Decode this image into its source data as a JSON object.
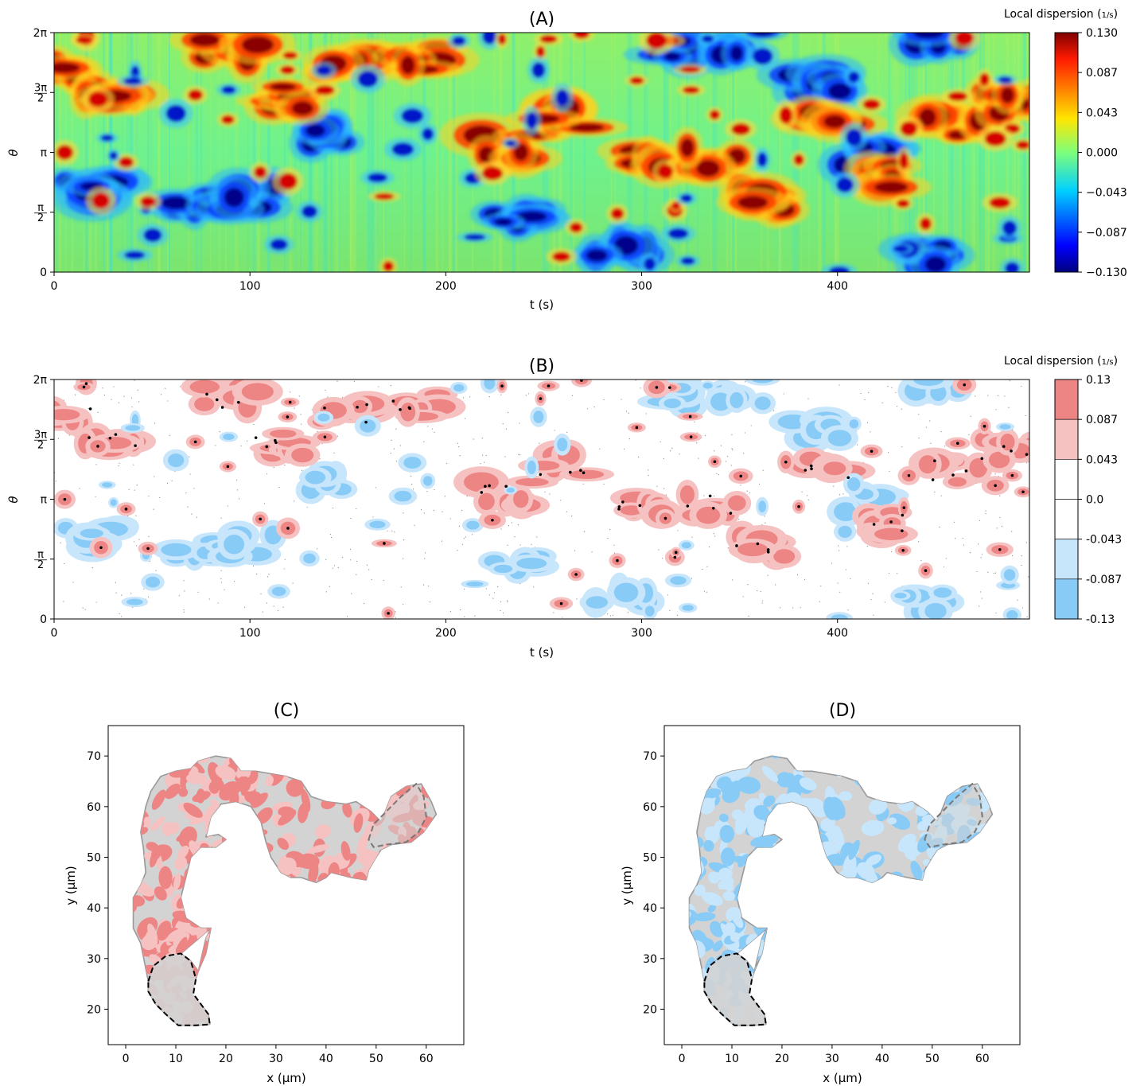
{
  "chart_data": [
    {
      "panel": "A",
      "type": "heatmap",
      "title": "(A)",
      "xlabel": "t (s)",
      "ylabel": "θ",
      "xlim": [
        0,
        498
      ],
      "ylim": [
        0,
        6.2832
      ],
      "xticks": [
        0,
        100,
        200,
        300,
        400
      ],
      "xtick_labels": [
        "0",
        "100",
        "200",
        "300",
        "400"
      ],
      "yticks": [
        0,
        1.5708,
        3.1416,
        4.7124,
        6.2832
      ],
      "ytick_labels": [
        "0",
        "π/2",
        "π",
        "3π/2",
        "2π"
      ],
      "colorbar": {
        "title": "Local dispersion (1/s)",
        "colormap": "jet",
        "range": [
          -0.13,
          0.13
        ],
        "tick_labels": [
          "0.130",
          "0.087",
          "0.043",
          "0.000",
          "−0.043",
          "−0.087",
          "−0.130"
        ]
      },
      "positive_band_centers": [
        {
          "t": 10,
          "theta": 5.3
        },
        {
          "t": 30,
          "theta": 4.7
        },
        {
          "t": 90,
          "theta": 5.8
        },
        {
          "t": 115,
          "theta": 4.6
        },
        {
          "t": 150,
          "theta": 5.4
        },
        {
          "t": 185,
          "theta": 5.6
        },
        {
          "t": 230,
          "theta": 3.3
        },
        {
          "t": 260,
          "theta": 4.0
        },
        {
          "t": 300,
          "theta": 2.9
        },
        {
          "t": 335,
          "theta": 3.0
        },
        {
          "t": 360,
          "theta": 1.9
        },
        {
          "t": 395,
          "theta": 3.9
        },
        {
          "t": 430,
          "theta": 2.5
        },
        {
          "t": 460,
          "theta": 3.9
        },
        {
          "t": 485,
          "theta": 4.4
        }
      ],
      "negative_band_centers": [
        {
          "t": 20,
          "theta": 2.2
        },
        {
          "t": 70,
          "theta": 1.8
        },
        {
          "t": 100,
          "theta": 1.9
        },
        {
          "t": 140,
          "theta": 3.6
        },
        {
          "t": 235,
          "theta": 1.4
        },
        {
          "t": 290,
          "theta": 0.5
        },
        {
          "t": 320,
          "theta": 5.9
        },
        {
          "t": 350,
          "theta": 6.0
        },
        {
          "t": 390,
          "theta": 5.0
        },
        {
          "t": 410,
          "theta": 3.0
        },
        {
          "t": 440,
          "theta": 0.4
        },
        {
          "t": 450,
          "theta": 6.1
        }
      ]
    },
    {
      "panel": "B",
      "type": "heatmap",
      "title": "(B)",
      "xlabel": "t (s)",
      "ylabel": "θ",
      "xlim": [
        0,
        498
      ],
      "ylim": [
        0,
        6.2832
      ],
      "xticks": [
        0,
        100,
        200,
        300,
        400
      ],
      "xtick_labels": [
        "0",
        "100",
        "200",
        "300",
        "400"
      ],
      "yticks": [
        0,
        1.5708,
        3.1416,
        4.7124,
        6.2832
      ],
      "ytick_labels": [
        "0",
        "π/2",
        "π",
        "3π/2",
        "2π"
      ],
      "levels": [
        -0.13,
        -0.087,
        -0.043,
        0.0,
        0.043,
        0.087,
        0.13
      ],
      "level_colors": [
        "#89cbf7",
        "#c8e6fb",
        "#ffffff",
        "#ffffff",
        "#f6c1c1",
        "#ee8585"
      ],
      "colorbar": {
        "title": "Local dispersion (1/s)",
        "tick_labels": [
          "0.13",
          "0.087",
          "0.043",
          "0.0",
          "-0.043",
          "-0.087",
          "-0.13"
        ]
      }
    },
    {
      "panel": "C",
      "type": "area",
      "title": "(C)",
      "xlabel": "x (μm)",
      "ylabel": "y (μm)",
      "xlim": [
        -3.5,
        67.5
      ],
      "ylim": [
        13,
        76
      ],
      "xticks": [
        0,
        10,
        20,
        30,
        40,
        50,
        60
      ],
      "yticks": [
        20,
        30,
        40,
        50,
        60,
        70
      ],
      "fill_colors": [
        "#f6c1c1",
        "#ee8585"
      ],
      "shape_color": "#d3d3d3"
    },
    {
      "panel": "D",
      "type": "area",
      "title": "(D)",
      "xlabel": "x (μm)",
      "ylabel": "y (μm)",
      "xlim": [
        -3.5,
        67.5
      ],
      "ylim": [
        13,
        76
      ],
      "xticks": [
        0,
        10,
        20,
        30,
        40,
        50,
        60
      ],
      "yticks": [
        20,
        30,
        40,
        50,
        60,
        70
      ],
      "fill_colors": [
        "#c8e6fb",
        "#89cbf7"
      ],
      "shape_color": "#d3d3d3"
    }
  ],
  "shape_outline": [
    [
      4.5,
      25.5
    ],
    [
      5.5,
      28.5
    ],
    [
      8,
      30.5
    ],
    [
      11,
      31
    ],
    [
      13,
      29.5
    ],
    [
      14.5,
      27.5
    ],
    [
      16,
      34
    ],
    [
      17,
      36
    ],
    [
      16,
      31
    ],
    [
      14.5,
      27.5
    ],
    [
      13,
      23
    ],
    [
      15,
      21
    ],
    [
      16.5,
      19
    ],
    [
      16.8,
      17
    ],
    [
      14,
      16.8
    ],
    [
      10.5,
      16.8
    ],
    [
      8,
      19
    ],
    [
      6,
      21
    ],
    [
      4.5,
      23.5
    ],
    [
      4.5,
      25.5
    ],
    [
      4,
      28
    ],
    [
      3,
      33
    ],
    [
      1.5,
      36
    ],
    [
      1.5,
      42
    ],
    [
      3,
      44.5
    ],
    [
      4,
      47
    ],
    [
      3.5,
      52
    ],
    [
      3,
      55
    ],
    [
      4,
      60
    ],
    [
      5,
      63
    ],
    [
      7,
      66
    ],
    [
      10,
      67
    ],
    [
      13,
      67.5
    ],
    [
      14.5,
      69
    ],
    [
      18,
      70
    ],
    [
      21,
      69.5
    ],
    [
      23,
      67
    ],
    [
      26,
      67
    ],
    [
      29,
      66.5
    ],
    [
      32,
      66
    ],
    [
      35,
      65
    ],
    [
      37,
      62
    ],
    [
      40,
      61
    ],
    [
      44,
      60.5
    ],
    [
      46,
      61
    ],
    [
      49,
      59
    ],
    [
      51,
      57
    ],
    [
      53,
      62
    ],
    [
      56,
      64
    ],
    [
      59,
      64.5
    ],
    [
      61,
      61
    ],
    [
      62,
      58.5
    ],
    [
      59.5,
      55
    ],
    [
      57,
      53
    ],
    [
      53,
      52.5
    ],
    [
      51,
      51.5
    ],
    [
      50,
      50
    ],
    [
      48.5,
      47.5
    ],
    [
      48,
      45.5
    ],
    [
      45,
      46
    ],
    [
      41,
      47
    ],
    [
      40,
      46
    ],
    [
      38,
      45
    ],
    [
      35,
      46
    ],
    [
      33,
      46
    ],
    [
      31,
      47
    ],
    [
      29,
      50
    ],
    [
      28,
      53
    ],
    [
      27,
      57
    ],
    [
      25,
      60
    ],
    [
      22,
      61
    ],
    [
      19,
      60.5
    ],
    [
      17,
      58
    ],
    [
      16,
      54
    ],
    [
      18.5,
      54.5
    ],
    [
      20,
      53.5
    ],
    [
      18,
      52
    ],
    [
      15,
      52
    ],
    [
      13,
      50
    ],
    [
      12,
      46
    ],
    [
      11,
      42
    ],
    [
      12,
      38
    ],
    [
      15,
      36
    ],
    [
      17,
      36
    ]
  ],
  "dashed_regions": {
    "bottom": [
      [
        4.5,
        25.5
      ],
      [
        5.5,
        28.5
      ],
      [
        8,
        30.5
      ],
      [
        11,
        31
      ],
      [
        13,
        29.5
      ],
      [
        14,
        26
      ],
      [
        13.5,
        23
      ],
      [
        15,
        21
      ],
      [
        16.5,
        19
      ],
      [
        16.8,
        17
      ],
      [
        14,
        16.8
      ],
      [
        10.5,
        16.8
      ],
      [
        8,
        19
      ],
      [
        6,
        21
      ],
      [
        4.5,
        23.5
      ],
      [
        4.5,
        25.5
      ]
    ],
    "right": [
      [
        48.5,
        53.5
      ],
      [
        49.5,
        56.5
      ],
      [
        52,
        59
      ],
      [
        55,
        62
      ],
      [
        58,
        64.5
      ],
      [
        59.5,
        62
      ],
      [
        60,
        58
      ],
      [
        58.5,
        55
      ],
      [
        56,
        53
      ],
      [
        52,
        52.5
      ],
      [
        49.5,
        52
      ],
      [
        48.5,
        53.5
      ]
    ]
  }
}
